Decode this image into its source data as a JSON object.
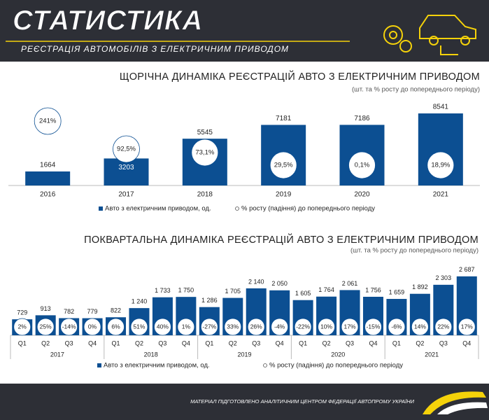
{
  "header": {
    "title": "СТАТИСТИКА",
    "subtitle": "РЕЄСТРАЦІЯ АВТОМОБІЛІВ З ЕЛЕКТРИЧНИМ ПРИВОДОМ"
  },
  "chart_data": [
    {
      "type": "bar",
      "title": "ЩОРІЧНА ДИНАМІКА РЕЄСТРАЦІЙ АВТО З ЕЛЕКТРИЧНИМ ПРИВОДОМ",
      "subtitle": "(шт. та % росту до попереднього періоду)",
      "categories": [
        "2016",
        "2017",
        "2018",
        "2019",
        "2020",
        "2021"
      ],
      "series": [
        {
          "name": "Авто з електричним приводом, од.",
          "color": "#0c4f92",
          "values": [
            1664,
            3203,
            5545,
            7181,
            7186,
            8541
          ]
        }
      ],
      "growth": {
        "name": "% росту (падіння) до попереднього періоду",
        "values": [
          241,
          92.5,
          73.1,
          29.5,
          0.1,
          18.9
        ],
        "value_labels": [
          "241%",
          "92,5%",
          "73,1%",
          "29,5%",
          "0,1%",
          "18,9%"
        ]
      },
      "ylim": [
        0,
        9000
      ]
    },
    {
      "type": "bar",
      "title": "ПОКВАРТАЛЬНА ДИНАМІКА РЕЄСТРАЦІЙ АВТО З ЕЛЕКТРИЧНИМ ПРИВОДОМ",
      "subtitle": "(шт. та % росту до попереднього періоду)",
      "categories": [
        "Q1",
        "Q2",
        "Q3",
        "Q4",
        "Q1",
        "Q2",
        "Q3",
        "Q4",
        "Q1",
        "Q2",
        "Q3",
        "Q4",
        "Q1",
        "Q2",
        "Q3",
        "Q4",
        "Q1",
        "Q2",
        "Q3",
        "Q4"
      ],
      "groups": [
        "2017",
        "2018",
        "2019",
        "2020",
        "2021"
      ],
      "series": [
        {
          "name": "Авто з електричним приводом, од.",
          "color": "#0c4f92",
          "values": [
            729,
            913,
            782,
            779,
            822,
            1240,
            1733,
            1750,
            1286,
            1705,
            2140,
            2050,
            1605,
            1764,
            2061,
            1756,
            1659,
            1892,
            2303,
            2687
          ],
          "value_labels": [
            "729",
            "913",
            "782",
            "779",
            "822",
            "1 240",
            "1 733",
            "1 750",
            "1 286",
            "1 705",
            "2 140",
            "2 050",
            "1 605",
            "1 764",
            "2 061",
            "1 756",
            "1 659",
            "1 892",
            "2 303",
            "2 687"
          ]
        }
      ],
      "growth": {
        "name": "% росту (падіння) до попереднього періоду",
        "values": [
          2,
          25,
          -14,
          0,
          6,
          51,
          40,
          1,
          -27,
          33,
          26,
          -4,
          -22,
          10,
          17,
          -15,
          -6,
          14,
          22,
          17
        ],
        "value_labels": [
          "2%",
          "25%",
          "-14%",
          "0%",
          "6%",
          "51%",
          "40%",
          "1%",
          "-27%",
          "33%",
          "26%",
          "-4%",
          "-22%",
          "10%",
          "17%",
          "-15%",
          "-6%",
          "14%",
          "22%",
          "17%"
        ]
      },
      "ylim": [
        0,
        3000
      ]
    }
  ],
  "footer": {
    "text": "МАТЕРІАЛ ПІДГОТОВЛЕНО АНАЛІТИЧНИМ ЦЕНТРОМ ФЕДЕРАЦІЇ АВТОПРОМУ УКРАЇНИ"
  }
}
